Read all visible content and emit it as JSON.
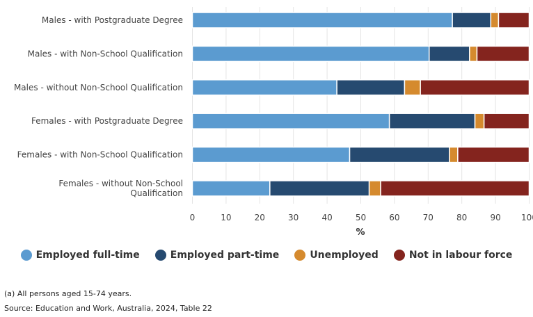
{
  "chart_data": {
    "type": "bar",
    "orientation": "horizontal",
    "stacked": true,
    "categories": [
      "Males - with Postgraduate Degree",
      "Males - with Non-School Qualification",
      "Males - without Non-School Qualification",
      "Females - with Postgraduate Degree",
      "Females - with Non-School Qualification",
      "Females - without Non-School Qualification"
    ],
    "category_lines": [
      [
        "Males - with Postgraduate Degree"
      ],
      [
        "Males - with Non-School Qualification"
      ],
      [
        "Males - without Non-School Qualification"
      ],
      [
        "Females - with Postgraduate Degree"
      ],
      [
        "Females - with Non-School Qualification"
      ],
      [
        "Females - without Non-School",
        "Qualification"
      ]
    ],
    "series": [
      {
        "name": "Employed full-time",
        "color": "#5b9bd0",
        "values": [
          77.2,
          70.3,
          42.9,
          58.5,
          46.7,
          23.0
        ]
      },
      {
        "name": "Employed part-time",
        "color": "#264a70",
        "values": [
          11.4,
          12.0,
          20.1,
          25.4,
          29.6,
          29.5
        ]
      },
      {
        "name": "Unemployed",
        "color": "#d58a2e",
        "values": [
          2.3,
          2.2,
          4.7,
          2.7,
          2.5,
          3.4
        ]
      },
      {
        "name": "Not in labour force",
        "color": "#84241e",
        "values": [
          9.1,
          15.5,
          32.3,
          13.4,
          21.2,
          44.1
        ]
      }
    ],
    "xlabel": "%",
    "xlim": [
      0,
      100
    ],
    "xticks": [
      "0",
      "10",
      "20",
      "30",
      "40",
      "50",
      "60",
      "70",
      "80",
      "90",
      "100"
    ],
    "grid": true,
    "legend_position": "bottom"
  },
  "notes": {
    "footnote": "(a) All persons aged 15-74 years.",
    "source": "Source: Education and Work, Australia, 2024, Table 22"
  }
}
